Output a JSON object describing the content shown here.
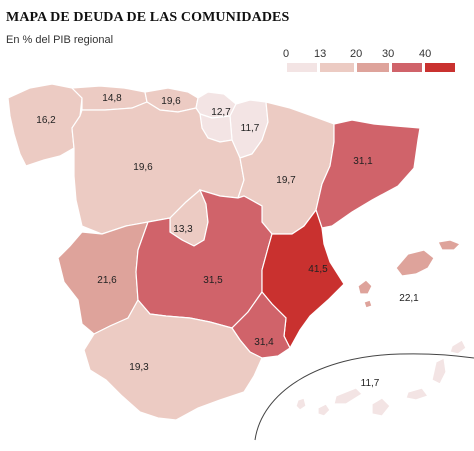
{
  "title": "MAPA DE DEUDA DE LAS COMUNIDADES",
  "subtitle": "En % del PIB regional",
  "legend": {
    "labels": [
      "0",
      "13",
      "20",
      "30",
      "40"
    ],
    "bins": [
      {
        "from": 0,
        "to": 13,
        "color": "#f3e4e4"
      },
      {
        "from": 13,
        "to": 20,
        "color": "#eccbc3"
      },
      {
        "from": 20,
        "to": 30,
        "color": "#dea39b"
      },
      {
        "from": 30,
        "to": 40,
        "color": "#d0636a"
      },
      {
        "from": 40,
        "to": null,
        "color": "#c9312f"
      }
    ]
  },
  "regions": [
    {
      "name": "galicia",
      "label": "16,2",
      "value": 16.2
    },
    {
      "name": "asturias",
      "label": "14,8",
      "value": 14.8
    },
    {
      "name": "cantabria",
      "label": "19,6",
      "value": 19.6
    },
    {
      "name": "pais-vasco",
      "label": "12,7",
      "value": 12.7
    },
    {
      "name": "navarra",
      "label": "11,7",
      "value": 11.7
    },
    {
      "name": "la-rioja",
      "label": "",
      "value": null
    },
    {
      "name": "castilla-y-leon",
      "label": "19,6",
      "value": 19.6
    },
    {
      "name": "aragon",
      "label": "19,7",
      "value": 19.7
    },
    {
      "name": "cataluna",
      "label": "31,1",
      "value": 31.1
    },
    {
      "name": "madrid",
      "label": "13,3",
      "value": 13.3
    },
    {
      "name": "extremadura",
      "label": "21,6",
      "value": 21.6
    },
    {
      "name": "castilla-la-mancha",
      "label": "31,5",
      "value": 31.5
    },
    {
      "name": "comunidad-valenciana",
      "label": "41,5",
      "value": 41.5
    },
    {
      "name": "murcia",
      "label": "31,4",
      "value": 31.4
    },
    {
      "name": "andalucia",
      "label": "19,3",
      "value": 19.3
    },
    {
      "name": "baleares",
      "label": "22,1",
      "value": 22.1
    },
    {
      "name": "canarias",
      "label": "11,7",
      "value": 11.7
    }
  ]
}
